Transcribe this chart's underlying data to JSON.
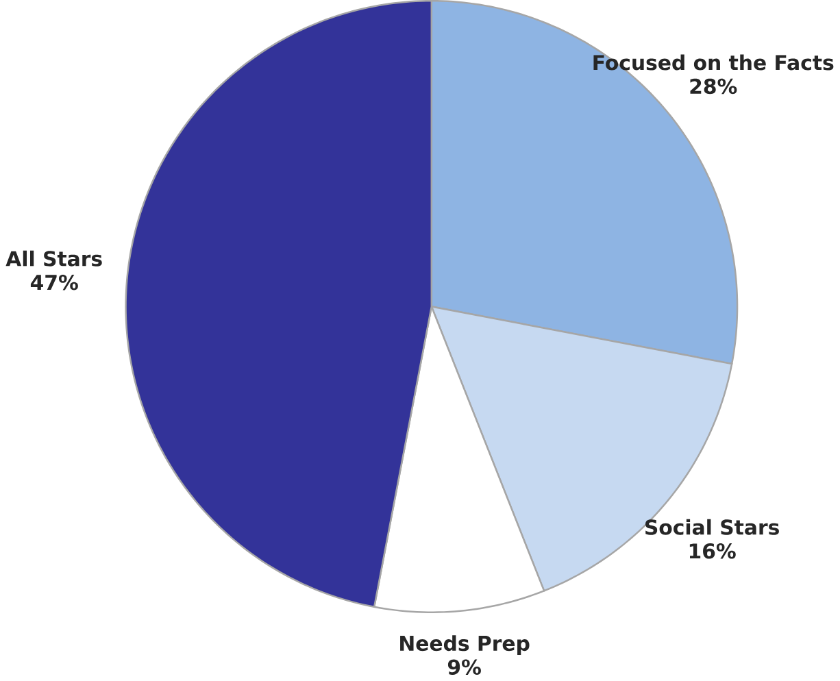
{
  "chart_data": {
    "type": "pie",
    "categories": [
      "Focused on the Facts",
      "Social Stars",
      "Needs Prep",
      "All Stars"
    ],
    "values": [
      28,
      16,
      9,
      47
    ],
    "colors": [
      "#8eb4e3",
      "#c6d9f1",
      "#ffffff",
      "#333399"
    ],
    "value_labels": [
      "28%",
      "16%",
      "9%",
      "47%"
    ]
  }
}
